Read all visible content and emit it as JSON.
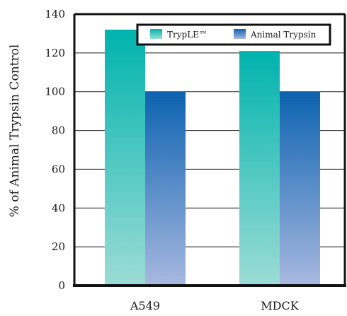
{
  "chart_data": {
    "type": "bar",
    "categories": [
      "A549",
      "MDCK"
    ],
    "series": [
      {
        "name": "TrypLE™",
        "values": [
          132,
          121
        ]
      },
      {
        "name": "Animal Trypsin",
        "values": [
          100,
          100
        ]
      }
    ],
    "title": "",
    "xlabel": "",
    "ylabel": "% of Animal Trypsin Control",
    "ylim": [
      0,
      140
    ],
    "yticks": [
      0,
      20,
      40,
      60,
      80,
      100,
      120,
      140
    ],
    "grid": true,
    "legend_position": "top-right"
  },
  "colors": {
    "tryple_top": "#00b3ad",
    "tryple_bottom": "#9ddcd6",
    "trypsin_top": "#0d62b0",
    "trypsin_bottom": "#a8b9e0",
    "axis": "#111111",
    "grid": "#222222"
  }
}
